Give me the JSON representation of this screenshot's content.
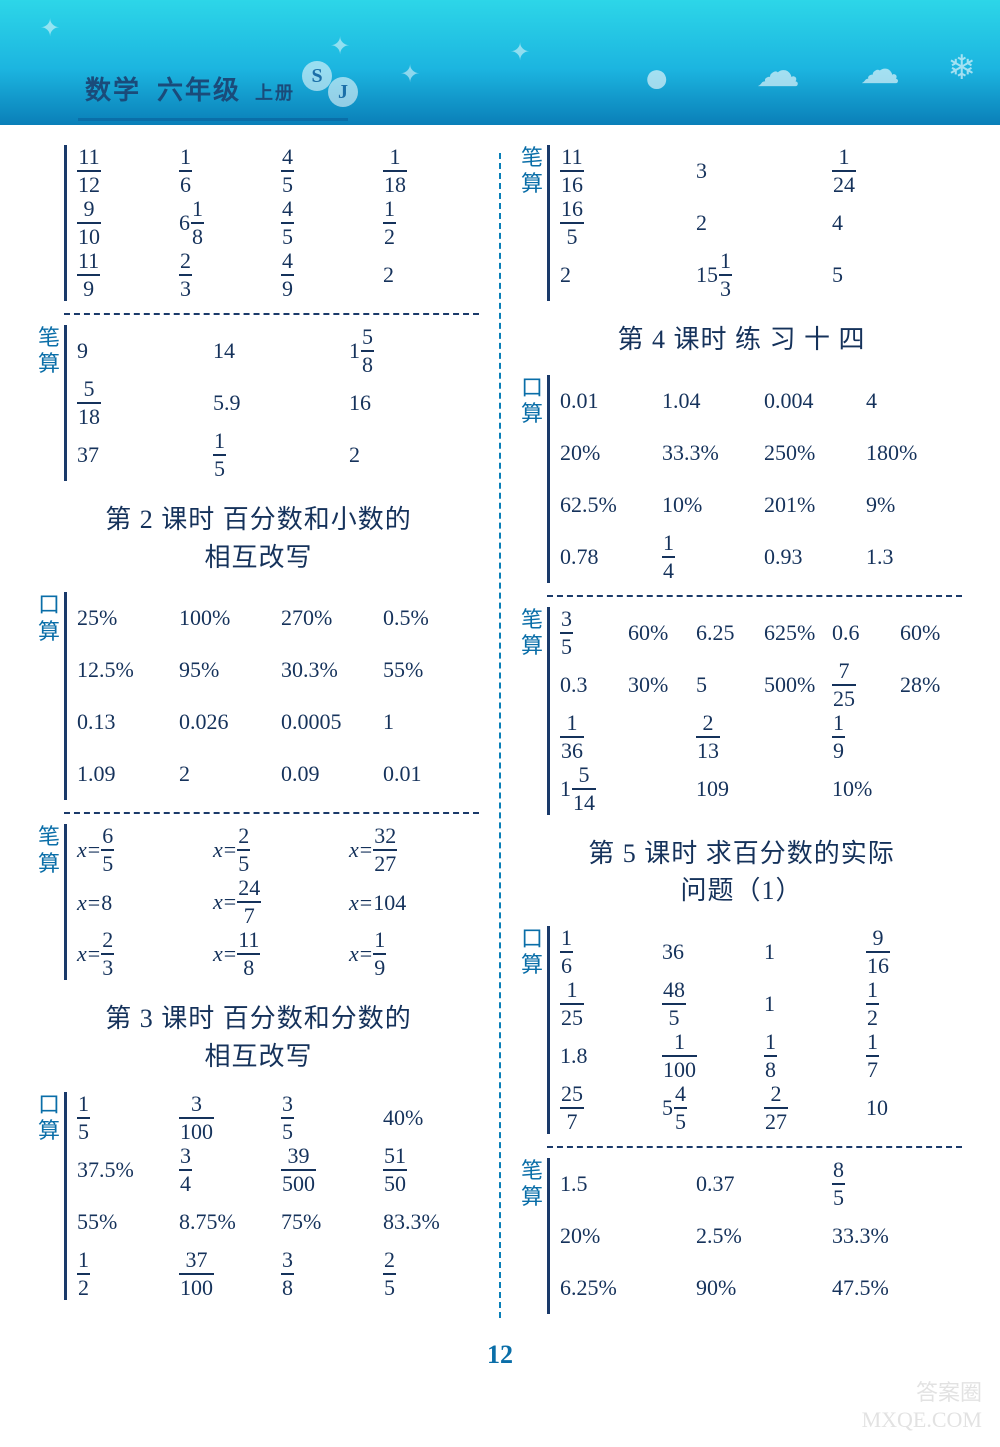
{
  "header": {
    "subject": "数学",
    "grade": "六年级",
    "volume": "上册",
    "badge1": "S",
    "badge2": "J"
  },
  "labels": {
    "bi": "笔算",
    "kou": "口算"
  },
  "left": {
    "block1": [
      [
        "f:11/12",
        "f:1/6",
        "f:4/5",
        "f:1/18"
      ],
      [
        "f:9/10",
        "m:6 1/8",
        "f:4/5",
        "f:1/2"
      ],
      [
        "f:11/9",
        "f:2/3",
        "f:4/9",
        "2"
      ]
    ],
    "block1b": [
      [
        "9",
        "14",
        "m:1 5/8"
      ],
      [
        "f:5/18",
        "5.9",
        "16"
      ],
      [
        "37",
        "f:1/5",
        "2"
      ]
    ],
    "title2": "第 2 课时  百分数和小数的\n相互改写",
    "block2": [
      [
        "25%",
        "100%",
        "270%",
        "0.5%"
      ],
      [
        "12.5%",
        "95%",
        "30.3%",
        "55%"
      ],
      [
        "0.13",
        "0.026",
        "0.0005",
        "1"
      ],
      [
        "1.09",
        "2",
        "0.09",
        "0.01"
      ]
    ],
    "block2b": [
      [
        "eq:x=|f:6/5",
        "eq:x=|f:2/5",
        "eq:x=|f:32/27"
      ],
      [
        "eq:x=|8",
        "eq:x=|f:24/7",
        "eq:x=|104"
      ],
      [
        "eq:x=|f:2/3",
        "eq:x=|f:11/8",
        "eq:x=|f:1/9"
      ]
    ],
    "title3": "第 3 课时  百分数和分数的\n相互改写",
    "block3": [
      [
        "f:1/5",
        "f:3/100",
        "f:3/5",
        "40%"
      ],
      [
        "37.5%",
        "f:3/4",
        "f:39/500",
        "f:51/50"
      ],
      [
        "55%",
        "8.75%",
        "75%",
        "83.3%"
      ],
      [
        "f:1/2",
        "f:37/100",
        "f:3/8",
        "f:2/5"
      ]
    ]
  },
  "right": {
    "block3b": [
      [
        "f:11/16",
        "3",
        "f:1/24"
      ],
      [
        "f:16/5",
        "2",
        "4"
      ],
      [
        "2",
        "m:15 1/3",
        "5"
      ]
    ],
    "title4": "第 4 课时  练 习 十 四",
    "block4": [
      [
        "0.01",
        "1.04",
        "0.004",
        "4"
      ],
      [
        "20%",
        "33.3%",
        "250%",
        "180%"
      ],
      [
        "62.5%",
        "10%",
        "201%",
        "9%"
      ],
      [
        "0.78",
        "f:1/4",
        "0.93",
        "1.3"
      ]
    ],
    "block4b": [
      [
        "f:3/5",
        "60%",
        "6.25",
        "625%",
        "0.6",
        "60%"
      ],
      [
        "0.3",
        "30%",
        "5",
        "500%",
        "f:7/25",
        "28%"
      ],
      [
        "f:1/36",
        "",
        "f:2/13",
        "",
        "f:1/9",
        ""
      ],
      [
        "m:1 5/14",
        "",
        "109",
        "",
        "10%",
        ""
      ]
    ],
    "title5": "第 5 课时  求百分数的实际\n问题（1）",
    "block5": [
      [
        "f:1/6",
        "36",
        "1",
        "f:9/16"
      ],
      [
        "f:1/25",
        "f:48/5",
        "1",
        "f:1/2"
      ],
      [
        "1.8",
        "f:1/100",
        "f:1/8",
        "f:1/7"
      ],
      [
        "f:25/7",
        "m:5 4/5",
        "f:2/27",
        "10"
      ]
    ],
    "block5b": [
      [
        "1.5",
        "0.37",
        "f:8/5"
      ],
      [
        "20%",
        "2.5%",
        "33.3%"
      ],
      [
        "6.25%",
        "90%",
        "47.5%"
      ]
    ]
  },
  "page": "12",
  "watermark": {
    "l1": "答案圈",
    "l2": "MXQE.COM"
  }
}
